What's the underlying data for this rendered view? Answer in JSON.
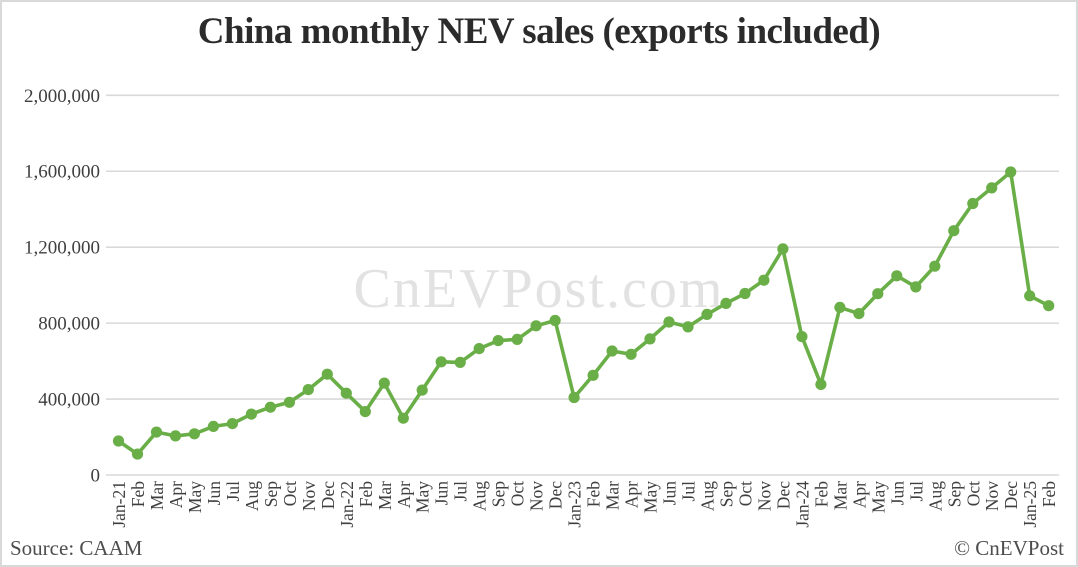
{
  "title": "China monthly NEV sales (exports included)",
  "watermark": "CnEVPost.com",
  "footer": {
    "source": "Source: CAAM",
    "credit": "© CnEVPost"
  },
  "colors": {
    "line": "#6aae47",
    "marker": "#6aae47",
    "grid": "#d9d9d9",
    "axis_text": "#3f3f3f",
    "title_text": "#2b2b2b",
    "watermark_text": "#e2e2e2",
    "footer_text": "#4d4d4d",
    "background": "#ffffff"
  },
  "chart_data": {
    "type": "line",
    "title": "China monthly NEV sales (exports included)",
    "xlabel": "",
    "ylabel": "",
    "ylim": [
      0,
      2000000
    ],
    "ytick_interval": 400000,
    "ytick_labels": [
      "0",
      "400,000",
      "800,000",
      "1,200,000",
      "1,600,000",
      "2,000,000"
    ],
    "grid": "horizontal",
    "legend": "none",
    "marker": "circle",
    "categories": [
      "Jan-21",
      "Feb",
      "Mar",
      "Apr",
      "May",
      "Jun",
      "Jul",
      "Aug",
      "Sep",
      "Oct",
      "Nov",
      "Dec",
      "Jan-22",
      "Feb",
      "Mar",
      "Apr",
      "May",
      "Jun",
      "Jul",
      "Aug",
      "Sep",
      "Oct",
      "Nov",
      "Dec",
      "Jan-23",
      "Feb",
      "Mar",
      "Apr",
      "May",
      "Jun",
      "Jul",
      "Aug",
      "Sep",
      "Oct",
      "Nov",
      "Dec",
      "Jan-24",
      "Feb",
      "Mar",
      "Apr",
      "May",
      "Jun",
      "Jul",
      "Aug",
      "Sep",
      "Oct",
      "Nov",
      "Dec",
      "Jan-25",
      "Feb"
    ],
    "series": [
      {
        "name": "China monthly NEV sales (units)",
        "values": [
          179000,
          110000,
          226000,
          206000,
          217000,
          256000,
          271000,
          321000,
          357000,
          383000,
          450000,
          531000,
          431000,
          334000,
          484000,
          299000,
          447000,
          596000,
          593000,
          666000,
          708000,
          714000,
          786000,
          814000,
          408000,
          525000,
          653000,
          636000,
          717000,
          806000,
          780000,
          846000,
          904000,
          956000,
          1026000,
          1191000,
          729000,
          477000,
          883000,
          850000,
          955000,
          1049000,
          991000,
          1100000,
          1287000,
          1430000,
          1512000,
          1596000,
          944000,
          892000
        ]
      }
    ]
  }
}
